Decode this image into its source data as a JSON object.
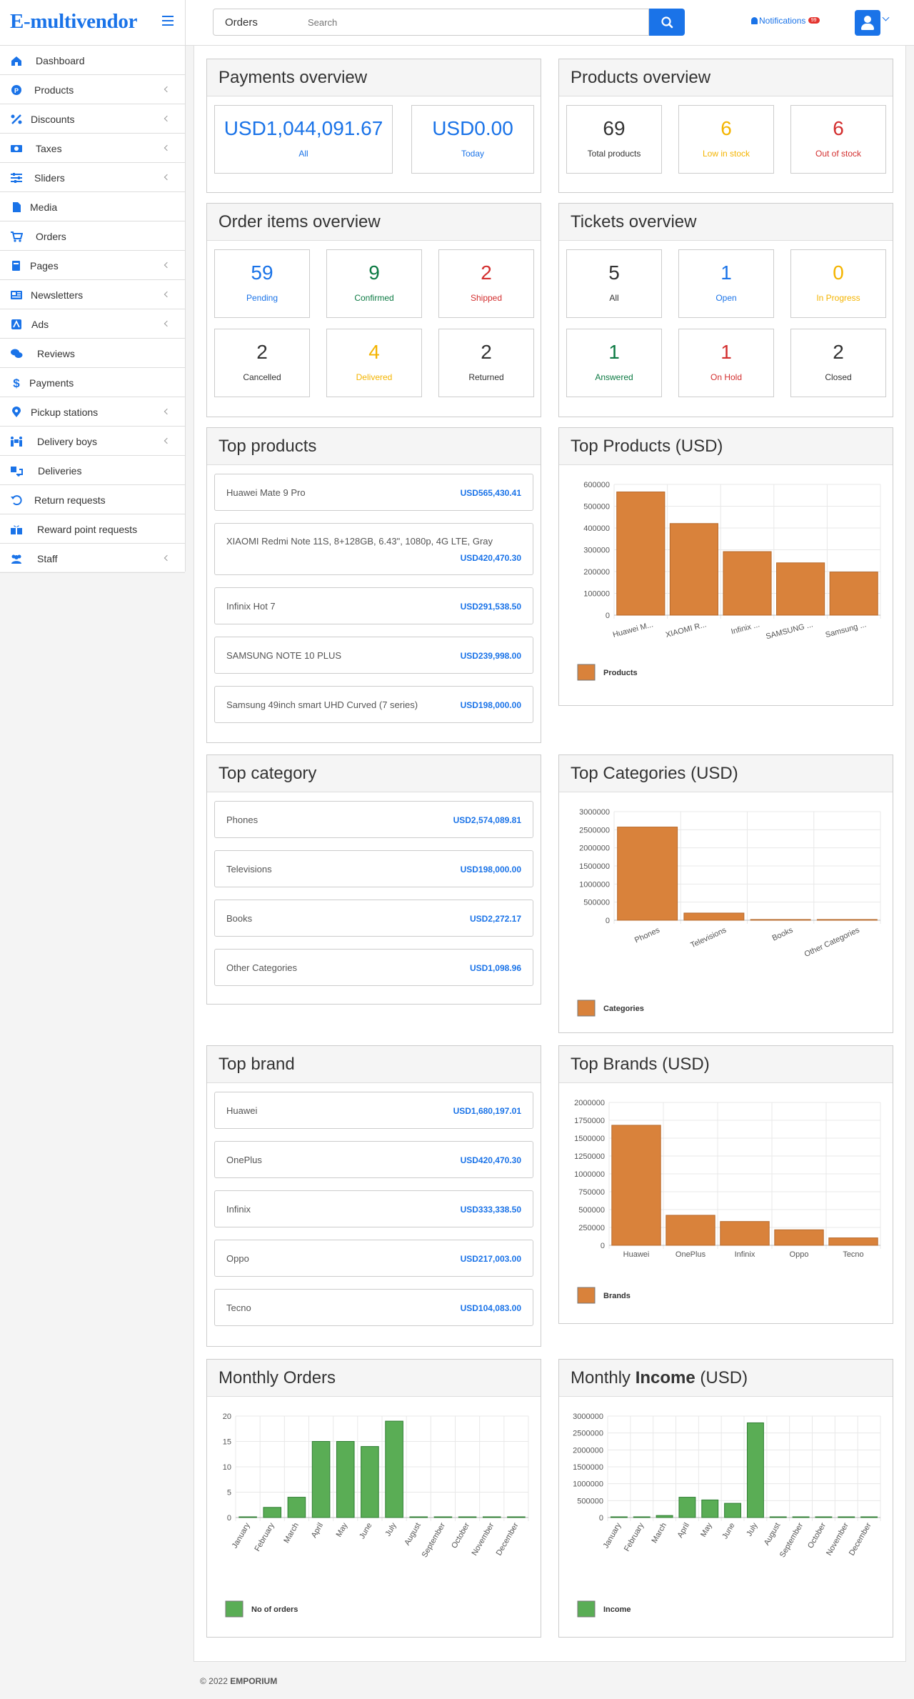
{
  "app": {
    "brand": "E-multivendor"
  },
  "header": {
    "category_select": "Orders",
    "search_placeholder": "Search",
    "notifications_label": "Notifications",
    "notifications_badge": "99"
  },
  "sidebar": {
    "items": [
      {
        "label": "Dashboard",
        "icon": "home-icon",
        "arrow": false
      },
      {
        "label": "Products",
        "icon": "product-icon",
        "arrow": true
      },
      {
        "label": "Discounts",
        "icon": "percent-icon",
        "arrow": true
      },
      {
        "label": "Taxes",
        "icon": "money-icon",
        "arrow": true
      },
      {
        "label": "Sliders",
        "icon": "sliders-icon",
        "arrow": true
      },
      {
        "label": "Media",
        "icon": "file-icon",
        "arrow": false
      },
      {
        "label": "Orders",
        "icon": "cart-icon",
        "arrow": false
      },
      {
        "label": "Pages",
        "icon": "book-icon",
        "arrow": true
      },
      {
        "label": "Newsletters",
        "icon": "newspaper-icon",
        "arrow": true
      },
      {
        "label": "Ads",
        "icon": "ad-icon",
        "arrow": true
      },
      {
        "label": "Reviews",
        "icon": "comments-icon",
        "arrow": false
      },
      {
        "label": "Payments",
        "icon": "dollar-icon",
        "arrow": false
      },
      {
        "label": "Pickup stations",
        "icon": "map-pin-icon",
        "arrow": true
      },
      {
        "label": "Delivery boys",
        "icon": "people-carry-icon",
        "arrow": true
      },
      {
        "label": "Deliveries",
        "icon": "truck-loading-icon",
        "arrow": false
      },
      {
        "label": "Return requests",
        "icon": "undo-icon",
        "arrow": false
      },
      {
        "label": "Reward point requests",
        "icon": "gift-icon",
        "arrow": false
      },
      {
        "label": "Staff",
        "icon": "users-icon",
        "arrow": true
      }
    ]
  },
  "payments": {
    "title": "Payments overview",
    "all_value": "USD1,044,091.67",
    "all_label": "All",
    "today_value": "USD0.00",
    "today_label": "Today"
  },
  "products_overview": {
    "title": "Products overview",
    "total": "69",
    "total_label": "Total products",
    "low": "6",
    "low_label": "Low in stock",
    "out": "6",
    "out_label": "Out of stock"
  },
  "order_items": {
    "title": "Order items overview",
    "stats": [
      {
        "value": "59",
        "label": "Pending",
        "color": "#1a73e8"
      },
      {
        "value": "9",
        "label": "Confirmed",
        "color": "#0c7a43"
      },
      {
        "value": "2",
        "label": "Shipped",
        "color": "#d32f2f"
      },
      {
        "value": "2",
        "label": "Cancelled",
        "color": "#333333"
      },
      {
        "value": "4",
        "label": "Delivered",
        "color": "#f4b400"
      },
      {
        "value": "2",
        "label": "Returned",
        "color": "#333333"
      }
    ]
  },
  "tickets": {
    "title": "Tickets overview",
    "stats": [
      {
        "value": "5",
        "label": "All",
        "color": "#333333"
      },
      {
        "value": "1",
        "label": "Open",
        "color": "#1a73e8"
      },
      {
        "value": "0",
        "label": "In Progress",
        "color": "#f4b400"
      },
      {
        "value": "1",
        "label": "Answered",
        "color": "#0c7a43"
      },
      {
        "value": "1",
        "label": "On Hold",
        "color": "#d32f2f"
      },
      {
        "value": "2",
        "label": "Closed",
        "color": "#333333"
      }
    ]
  },
  "top_products": {
    "title": "Top products",
    "items": [
      {
        "name": "Huawei Mate 9 Pro",
        "value": "USD565,430.41"
      },
      {
        "name": "XIAOMI Redmi Note 11S, 8+128GB, 6.43\", 1080p, 4G LTE, Gray",
        "value": "USD420,470.30"
      },
      {
        "name": "Infinix Hot 7",
        "value": "USD291,538.50"
      },
      {
        "name": "SAMSUNG NOTE 10 PLUS",
        "value": "USD239,998.00"
      },
      {
        "name": "Samsung 49inch smart UHD Curved (7 series)",
        "value": "USD198,000.00"
      }
    ]
  },
  "top_category": {
    "title": "Top category",
    "items": [
      {
        "name": "Phones",
        "value": "USD2,574,089.81"
      },
      {
        "name": "Televisions",
        "value": "USD198,000.00"
      },
      {
        "name": "Books",
        "value": "USD2,272.17"
      },
      {
        "name": "Other Categories",
        "value": "USD1,098.96"
      }
    ]
  },
  "top_brand": {
    "title": "Top brand",
    "items": [
      {
        "name": "Huawei",
        "value": "USD1,680,197.01"
      },
      {
        "name": "OnePlus",
        "value": "USD420,470.30"
      },
      {
        "name": "Infinix",
        "value": "USD333,338.50"
      },
      {
        "name": "Oppo",
        "value": "USD217,003.00"
      },
      {
        "name": "Tecno",
        "value": "USD104,083.00"
      }
    ]
  },
  "chart_data": [
    {
      "id": "products",
      "type": "bar",
      "title": "Top Products (USD)",
      "categories": [
        "Huawei M...",
        "XIAOMI R...",
        "Infinix ...",
        "SAMSUNG ...",
        "Samsung ..."
      ],
      "series": [
        {
          "name": "Products",
          "values": [
            565430.41,
            420470.3,
            291538.5,
            239998.0,
            198000.0
          ]
        }
      ],
      "ylim": [
        0,
        600000
      ],
      "yticks": [
        "0",
        "100000",
        "200000",
        "300000",
        "400000",
        "500000",
        "600000"
      ],
      "color": "#d9823b",
      "rotate_labels": 15,
      "grid": true,
      "legend": "bottom-left"
    },
    {
      "id": "categories",
      "type": "bar",
      "title": "Top Categories (USD)",
      "categories": [
        "Phones",
        "Televisions",
        "Books",
        "Other Categories"
      ],
      "series": [
        {
          "name": "Categories",
          "values": [
            2574089.81,
            198000.0,
            2272.17,
            1098.96
          ]
        }
      ],
      "ylim": [
        0,
        3000000
      ],
      "yticks": [
        "0",
        "500000",
        "1000000",
        "1500000",
        "2000000",
        "2500000",
        "3000000"
      ],
      "color": "#d9823b",
      "rotate_labels": 25,
      "grid": true,
      "legend": "bottom-left"
    },
    {
      "id": "brands",
      "type": "bar",
      "title": "Top Brands (USD)",
      "categories": [
        "Huawei",
        "OnePlus",
        "Infinix",
        "Oppo",
        "Tecno"
      ],
      "series": [
        {
          "name": "Brands",
          "values": [
            1680197.01,
            420470.3,
            333338.5,
            217003.0,
            104083.0
          ]
        }
      ],
      "ylim": [
        0,
        2000000
      ],
      "yticks": [
        "0",
        "250000",
        "500000",
        "750000",
        "1000000",
        "1250000",
        "1500000",
        "1750000",
        "2000000"
      ],
      "color": "#d9823b",
      "rotate_labels": 0,
      "grid": true,
      "legend": "bottom-left"
    },
    {
      "id": "monthly_orders",
      "type": "bar",
      "title": "Monthly Orders",
      "categories": [
        "January",
        "February",
        "March",
        "April",
        "May",
        "June",
        "July",
        "August",
        "September",
        "October",
        "November",
        "December"
      ],
      "series": [
        {
          "name": "No of orders",
          "values": [
            0,
            2,
            4,
            15,
            15,
            14,
            19,
            0,
            0,
            0,
            0,
            0
          ]
        }
      ],
      "ylim": [
        0,
        20
      ],
      "yticks": [
        "0",
        "5",
        "10",
        "15",
        "20"
      ],
      "color": "#5aad55",
      "rotate_labels": 60,
      "grid": true,
      "legend": "bottom-left"
    },
    {
      "id": "monthly_income",
      "type": "bar",
      "title": "Monthly Income (USD)",
      "categories": [
        "January",
        "February",
        "March",
        "April",
        "May",
        "June",
        "July",
        "August",
        "September",
        "October",
        "November",
        "December"
      ],
      "series": [
        {
          "name": "Income",
          "values": [
            0,
            20000,
            60000,
            600000,
            520000,
            420000,
            2800000,
            0,
            0,
            0,
            0,
            0
          ]
        }
      ],
      "ylim": [
        0,
        3000000
      ],
      "yticks": [
        "0",
        "500000",
        "1000000",
        "1500000",
        "2000000",
        "2500000",
        "3000000"
      ],
      "color": "#5aad55",
      "rotate_labels": 60,
      "grid": true,
      "legend": "bottom-left"
    }
  ],
  "monthly_income_title": {
    "pre": "Monthly ",
    "bold": "Income",
    "post": " (USD)"
  },
  "footer": {
    "copyright": "© 2022 ",
    "company": "EMPORIUM"
  }
}
